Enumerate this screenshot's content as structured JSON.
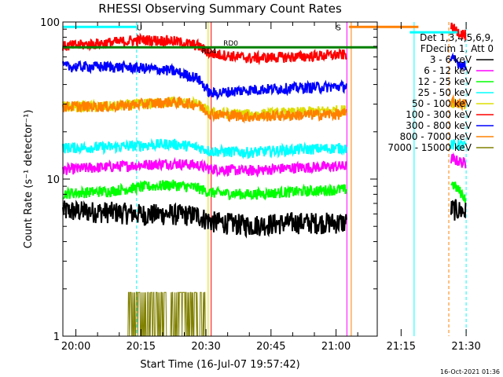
{
  "chart_data": {
    "type": "line",
    "title": "RHESSI Observing Summary Count Rates",
    "xlabel": "Start Time (16-Jul-07 19:57:42)",
    "ylabel": "Count Rate (s⁻¹ detector⁻¹)",
    "y_scale": "log",
    "ylim": [
      1,
      100
    ],
    "y_ticks": [
      {
        "value": 1,
        "label": "1"
      },
      {
        "value": 10,
        "label": "10"
      },
      {
        "value": 100,
        "label": "100"
      }
    ],
    "x_range_minutes": [
      -3,
      69.5
    ],
    "x_ticks": [
      {
        "min": 0,
        "label": "20:00"
      },
      {
        "min": 15,
        "label": "20:15"
      },
      {
        "min": 30,
        "label": "20:30"
      },
      {
        "min": 45,
        "label": "20:45"
      },
      {
        "min": 60,
        "label": "21:00"
      },
      {
        "min": 75,
        "label": "21:15"
      },
      {
        "min": 90,
        "label": "21:30"
      }
    ],
    "legend_header": [
      "Det 1,3,4,5,6,9,",
      "FDecim 1, Att 0"
    ],
    "legend_placement": "right",
    "gaps_minutes": [
      [
        62.5,
        86.5
      ]
    ],
    "series": [
      {
        "name": "3 - 6 keV",
        "color": "#000000",
        "points": [
          [
            -3,
            6.3
          ],
          [
            8,
            6.2
          ],
          [
            15,
            6.0
          ],
          [
            22,
            6.0
          ],
          [
            28,
            5.9
          ],
          [
            31,
            5.4
          ],
          [
            40,
            5.1
          ],
          [
            50,
            5.3
          ],
          [
            62,
            5.3
          ],
          [
            86.5,
            6.5
          ],
          [
            90,
            6.2
          ]
        ]
      },
      {
        "name": "6 - 12 keV",
        "color": "#ff00ff",
        "points": [
          [
            -3,
            11.5
          ],
          [
            8,
            12.0
          ],
          [
            15,
            12.3
          ],
          [
            22,
            12.6
          ],
          [
            28,
            12.3
          ],
          [
            31,
            11.6
          ],
          [
            40,
            11.3
          ],
          [
            50,
            11.8
          ],
          [
            62,
            12.1
          ],
          [
            86.5,
            13.5
          ],
          [
            90,
            12.5
          ]
        ]
      },
      {
        "name": "12 - 25 keV",
        "color": "#00ff00",
        "points": [
          [
            -3,
            8.1
          ],
          [
            8,
            8.4
          ],
          [
            15,
            8.9
          ],
          [
            22,
            9.2
          ],
          [
            28,
            8.8
          ],
          [
            31,
            8.2
          ],
          [
            40,
            8.0
          ],
          [
            50,
            8.3
          ],
          [
            62,
            8.6
          ],
          [
            86.5,
            9.5
          ],
          [
            90,
            7.5
          ]
        ]
      },
      {
        "name": "25 - 50 keV",
        "color": "#00ffff",
        "points": [
          [
            -3,
            15.8
          ],
          [
            8,
            16.0
          ],
          [
            15,
            16.4
          ],
          [
            22,
            16.8
          ],
          [
            28,
            16.0
          ],
          [
            31,
            15.1
          ],
          [
            40,
            14.8
          ],
          [
            50,
            15.4
          ],
          [
            62,
            15.8
          ],
          [
            86.5,
            16.5
          ],
          [
            90,
            16.5
          ]
        ]
      },
      {
        "name": "50 - 100 keV",
        "color": "#dddd00",
        "points": [
          [
            -3,
            29
          ],
          [
            8,
            29
          ],
          [
            15,
            30
          ],
          [
            22,
            31
          ],
          [
            28,
            30
          ],
          [
            31,
            26.5
          ],
          [
            40,
            25.8
          ],
          [
            50,
            26.5
          ],
          [
            62,
            27.5
          ],
          [
            86.5,
            31
          ],
          [
            90,
            30
          ]
        ]
      },
      {
        "name": "100 - 300 keV",
        "color": "#ff0000",
        "points": [
          [
            -3,
            70
          ],
          [
            8,
            74
          ],
          [
            15,
            77
          ],
          [
            22,
            76
          ],
          [
            28,
            71
          ],
          [
            31,
            63
          ],
          [
            40,
            59
          ],
          [
            50,
            60
          ],
          [
            62,
            62
          ],
          [
            86.5,
            92
          ],
          [
            90,
            82
          ]
        ]
      },
      {
        "name": "300 - 800 keV",
        "color": "#0000ff",
        "points": [
          [
            -3,
            52
          ],
          [
            8,
            52
          ],
          [
            15,
            51
          ],
          [
            22,
            49
          ],
          [
            28,
            44
          ],
          [
            31,
            35
          ],
          [
            40,
            37
          ],
          [
            50,
            38
          ],
          [
            62,
            39
          ],
          [
            86.5,
            58
          ],
          [
            90,
            52
          ]
        ]
      },
      {
        "name": "800 - 7000 keV",
        "color": "#ff8000",
        "points": [
          [
            -3,
            29
          ],
          [
            8,
            29
          ],
          [
            15,
            30
          ],
          [
            22,
            31
          ],
          [
            28,
            30
          ],
          [
            31,
            26
          ],
          [
            40,
            25
          ],
          [
            50,
            25.5
          ],
          [
            62,
            26
          ],
          [
            86.5,
            31
          ],
          [
            90,
            30
          ]
        ]
      },
      {
        "name": "7000 - 15000 keV",
        "color": "#808000",
        "points": [
          [
            12,
            1.9
          ],
          [
            30,
            1.9
          ]
        ]
      }
    ],
    "flag_lines": [
      {
        "y": 69,
        "from": -3,
        "to": 69.5,
        "color": "#008000",
        "labels": [
          {
            "text": "RD4",
            "at": 29
          },
          {
            "text": "RD0",
            "at": 34
          }
        ]
      }
    ],
    "flag_segments": [
      {
        "y": 93,
        "from": -3,
        "to": 14,
        "color": "#00ffff",
        "labels": [
          {
            "text": "U",
            "at": 14
          }
        ]
      },
      {
        "y": 93,
        "from": 63,
        "to": 79,
        "color": "#ff8000",
        "labels": [
          {
            "text": "S",
            "at": 60
          }
        ]
      },
      {
        "y": 86,
        "from": 77,
        "to": 88,
        "color": "#00ffff",
        "labels": []
      }
    ],
    "vertical_markers": [
      {
        "min": -3,
        "color": "#00ffff",
        "style": "solid"
      },
      {
        "min": 14,
        "color": "#00ffff",
        "style": "dashed"
      },
      {
        "min": 30.5,
        "color": "#dddd00",
        "style": "solid"
      },
      {
        "min": 31.2,
        "color": "#ff0000",
        "style": "solid"
      },
      {
        "min": 62.5,
        "color": "#ff00ff",
        "style": "solid"
      },
      {
        "min": 63.5,
        "color": "#ff8000",
        "style": "solid"
      },
      {
        "min": 69.5,
        "color": "#ff8000",
        "style": "solid"
      },
      {
        "min": 78,
        "color": "#00ffff",
        "style": "solid"
      },
      {
        "min": 86,
        "color": "#ff8000",
        "style": "dashed"
      },
      {
        "min": 90,
        "color": "#00ffff",
        "style": "dashed"
      }
    ],
    "timestamp": "16-Oct-2021 01:36"
  }
}
